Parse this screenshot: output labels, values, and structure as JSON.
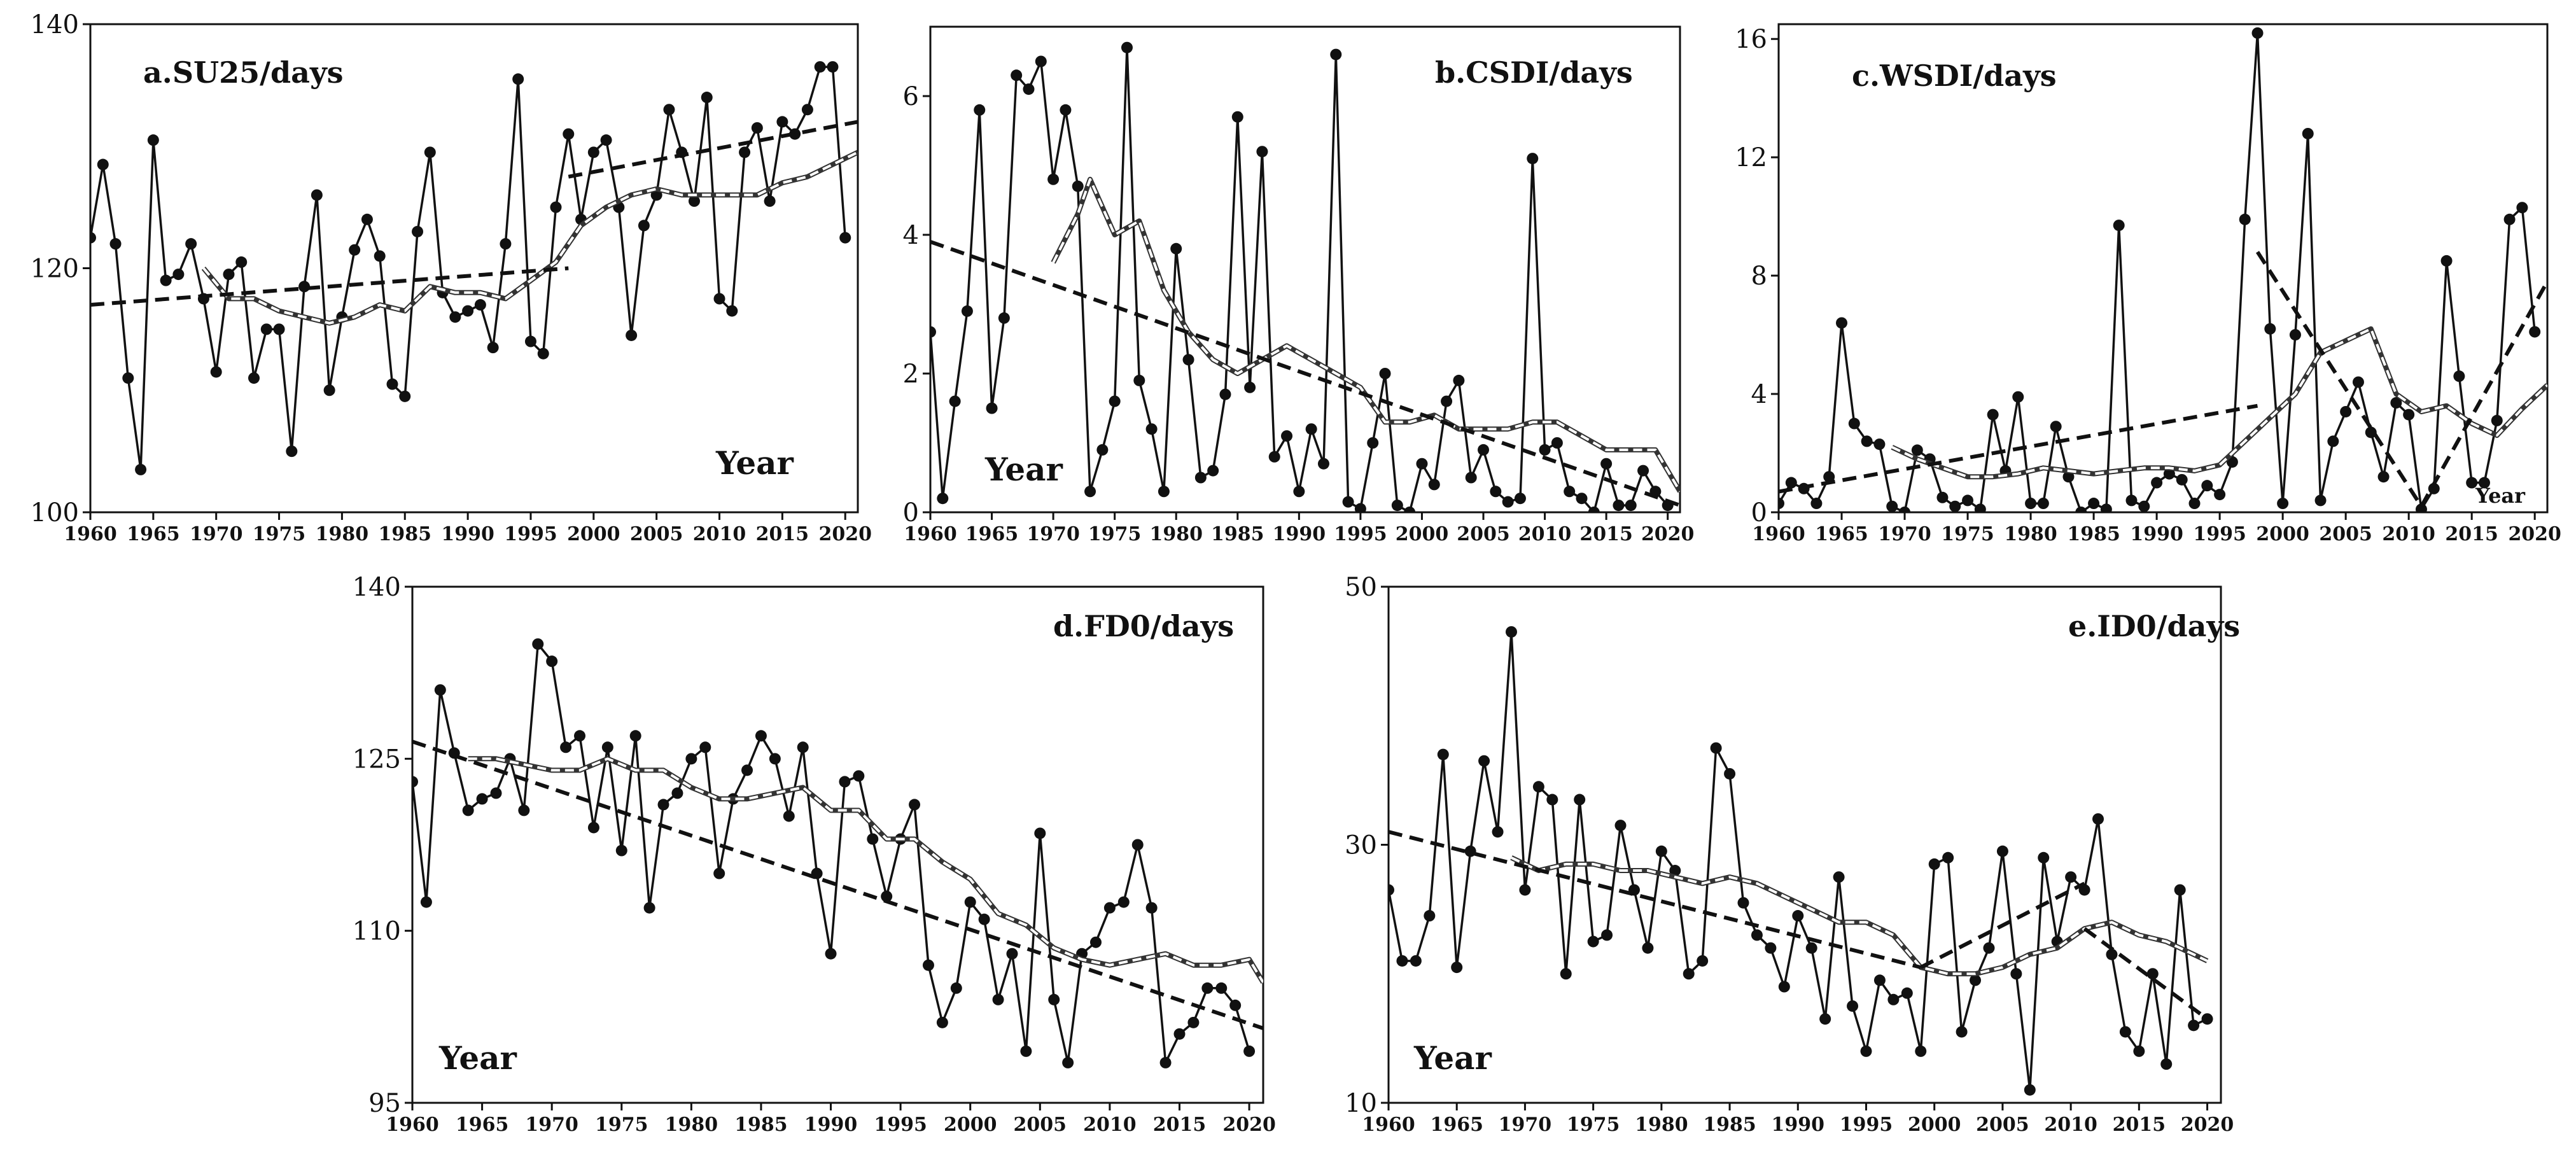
{
  "chart_data": [
    {
      "type": "line",
      "title": "a.SU25/days",
      "xlabel": "Year",
      "x_ticks": [
        1960,
        1965,
        1970,
        1975,
        1980,
        1985,
        1990,
        1995,
        2000,
        2005,
        2010,
        2015,
        2020
      ],
      "y_ticks": [
        100,
        120,
        140
      ],
      "xlim": [
        1960,
        2021
      ],
      "ylim": [
        100,
        140
      ],
      "series": [
        {
          "style": "solid-markers",
          "x_start": 1960,
          "values": [
            122.5,
            128.5,
            122,
            111,
            103.5,
            130.5,
            119,
            119.5,
            122,
            117.5,
            111.5,
            119.5,
            120.5,
            111,
            115,
            115,
            105,
            118.5,
            126,
            110,
            116,
            121.5,
            124,
            121,
            110.5,
            109.5,
            123,
            129.5,
            118,
            116,
            116.5,
            117,
            113.5,
            122,
            135.5,
            114,
            113,
            125,
            131,
            124,
            129.5,
            130.5,
            125,
            114.5,
            123.5,
            126,
            133,
            129.5,
            125.5,
            134,
            117.5,
            116.5,
            129.5,
            131.5,
            125.5,
            132,
            131,
            133,
            136.5,
            136.5,
            122.5
          ]
        },
        {
          "style": "moving-average",
          "x": [
            1969,
            1971,
            1973,
            1975,
            1977,
            1979,
            1981,
            1983,
            1985,
            1987,
            1989,
            1991,
            1993,
            1995,
            1997,
            1999,
            2001,
            2003,
            2005,
            2007,
            2009,
            2011,
            2013,
            2015,
            2017,
            2019,
            2021
          ],
          "values": [
            120,
            117.5,
            117.5,
            116.5,
            116,
            115.5,
            116,
            117,
            116.5,
            118.5,
            118,
            118,
            117.5,
            119,
            120.5,
            123.5,
            125,
            126,
            126.5,
            126,
            126,
            126,
            126,
            127,
            127.5,
            128.5,
            129.5
          ]
        },
        {
          "style": "trend",
          "x": [
            1960,
            1998
          ],
          "values": [
            117,
            120
          ]
        },
        {
          "style": "trend",
          "x": [
            1998,
            2021
          ],
          "values": [
            127.5,
            132
          ]
        }
      ]
    },
    {
      "type": "line",
      "title": "b.CSDI/days",
      "xlabel": "Year",
      "x_ticks": [
        1960,
        1965,
        1970,
        1975,
        1980,
        1985,
        1990,
        1995,
        2000,
        2005,
        2010,
        2015,
        2020
      ],
      "y_ticks": [
        0,
        2,
        4,
        6
      ],
      "xlim": [
        1960,
        2021
      ],
      "ylim": [
        0,
        7
      ],
      "series": [
        {
          "style": "solid-markers",
          "x_start": 1960,
          "values": [
            2.6,
            0.2,
            1.6,
            2.9,
            5.8,
            1.5,
            2.8,
            6.3,
            6.1,
            6.5,
            4.8,
            5.8,
            4.7,
            0.3,
            0.9,
            1.6,
            6.7,
            1.9,
            1.2,
            0.3,
            3.8,
            2.2,
            0.5,
            0.6,
            1.7,
            5.7,
            1.8,
            5.2,
            0.8,
            1.1,
            0.3,
            1.2,
            0.7,
            6.6,
            0.15,
            0.05,
            1.0,
            2.0,
            0.1,
            0.0,
            0.7,
            0.4,
            1.6,
            1.9,
            0.5,
            0.9,
            0.3,
            0.15,
            0.2,
            5.1,
            0.9,
            1.0,
            0.3,
            0.2,
            0.0,
            0.7,
            0.1,
            0.1,
            0.6,
            0.3,
            0.1
          ]
        },
        {
          "style": "moving-average",
          "x": [
            1970,
            1972,
            1973,
            1975,
            1977,
            1979,
            1981,
            1983,
            1985,
            1987,
            1989,
            1991,
            1993,
            1995,
            1997,
            1999,
            2001,
            2003,
            2005,
            2007,
            2009,
            2011,
            2013,
            2015,
            2017,
            2019,
            2021
          ],
          "values": [
            3.6,
            4.3,
            4.8,
            4.0,
            4.2,
            3.2,
            2.6,
            2.2,
            2.0,
            2.2,
            2.4,
            2.2,
            2.0,
            1.8,
            1.3,
            1.3,
            1.4,
            1.2,
            1.2,
            1.2,
            1.3,
            1.3,
            1.1,
            0.9,
            0.9,
            0.9,
            0.3
          ]
        },
        {
          "style": "trend",
          "x": [
            1960,
            2021
          ],
          "values": [
            3.9,
            0.1
          ]
        }
      ]
    },
    {
      "type": "line",
      "title": "c.WSDI/days",
      "xlabel": "Year",
      "x_ticks": [
        1960,
        1965,
        1970,
        1975,
        1980,
        1985,
        1990,
        1995,
        2000,
        2005,
        2010,
        2015,
        2020
      ],
      "y_ticks": [
        0,
        4,
        8,
        12,
        16
      ],
      "xlim": [
        1960,
        2021
      ],
      "ylim": [
        0,
        16.5
      ],
      "series": [
        {
          "style": "solid-markers",
          "x_start": 1960,
          "values": [
            0.3,
            1.0,
            0.8,
            0.3,
            1.2,
            6.4,
            3.0,
            2.4,
            2.3,
            0.2,
            0.0,
            2.1,
            1.8,
            0.5,
            0.2,
            0.4,
            0.1,
            3.3,
            1.4,
            3.9,
            0.3,
            0.3,
            2.9,
            1.2,
            0.0,
            0.3,
            0.1,
            9.7,
            0.4,
            0.2,
            1.0,
            1.3,
            1.1,
            0.3,
            0.9,
            0.6,
            1.7,
            9.9,
            16.2,
            6.2,
            0.3,
            6.0,
            12.8,
            0.4,
            2.4,
            3.4,
            4.4,
            2.7,
            1.2,
            3.7,
            3.3,
            0.1,
            0.8,
            8.5,
            4.6,
            1.0,
            1.0,
            3.1,
            9.9,
            10.3,
            6.1
          ]
        },
        {
          "style": "moving-average",
          "x": [
            1969,
            1971,
            1973,
            1975,
            1977,
            1979,
            1981,
            1983,
            1985,
            1987,
            1989,
            1991,
            1993,
            1995,
            1997,
            1999,
            2001,
            2003,
            2005,
            2007,
            2009,
            2011,
            2013,
            2015,
            2017,
            2019,
            2021
          ],
          "values": [
            2.2,
            1.8,
            1.5,
            1.2,
            1.2,
            1.3,
            1.5,
            1.4,
            1.3,
            1.4,
            1.5,
            1.5,
            1.4,
            1.6,
            2.4,
            3.2,
            4.0,
            5.4,
            5.8,
            6.2,
            4.0,
            3.4,
            3.6,
            3.0,
            2.6,
            3.5,
            4.3
          ]
        },
        {
          "style": "trend",
          "x": [
            1960,
            1998
          ],
          "values": [
            0.7,
            3.6
          ]
        },
        {
          "style": "trend",
          "x": [
            1998,
            2011
          ],
          "values": [
            8.8,
            0.2
          ]
        },
        {
          "style": "trend",
          "x": [
            2011,
            2021
          ],
          "values": [
            0.2,
            7.8
          ]
        }
      ]
    },
    {
      "type": "line",
      "title": "d.FD0/days",
      "xlabel": "Year",
      "x_ticks": [
        1960,
        1965,
        1970,
        1975,
        1980,
        1985,
        1990,
        1995,
        2000,
        2005,
        2010,
        2015,
        2020
      ],
      "y_ticks": [
        95,
        110,
        125,
        140
      ],
      "xlim": [
        1960,
        2021
      ],
      "ylim": [
        95,
        140
      ],
      "series": [
        {
          "style": "solid-markers",
          "x_start": 1960,
          "values": [
            123,
            112.5,
            131,
            125.5,
            120.5,
            121.5,
            122,
            125,
            120.5,
            135,
            133.5,
            126,
            127,
            119,
            126,
            117,
            127,
            112,
            121,
            122,
            125,
            126,
            115,
            121.5,
            124,
            127,
            125,
            120,
            126,
            115,
            108,
            123,
            123.5,
            118,
            113,
            118,
            121,
            107,
            102,
            105,
            112.5,
            111,
            104,
            108,
            99.5,
            118.5,
            104,
            98.5,
            108,
            109,
            112,
            112.5,
            117.5,
            112,
            98.5,
            101,
            102,
            105,
            105,
            103.5,
            99.5
          ]
        },
        {
          "style": "moving-average",
          "x": [
            1964,
            1966,
            1968,
            1970,
            1972,
            1974,
            1976,
            1978,
            1980,
            1982,
            1984,
            1986,
            1988,
            1990,
            1992,
            1994,
            1996,
            1998,
            2000,
            2002,
            2004,
            2006,
            2008,
            2010,
            2012,
            2014,
            2016,
            2018,
            2020,
            2021
          ],
          "values": [
            125,
            125,
            124.5,
            124,
            124,
            125,
            124,
            124,
            122.5,
            121.5,
            121.5,
            122,
            122.5,
            120.5,
            120.5,
            118,
            118,
            116,
            114.5,
            111.5,
            110.5,
            108.5,
            107.5,
            107,
            107.5,
            108,
            107,
            107,
            107.5,
            105.5
          ]
        },
        {
          "style": "trend",
          "x": [
            1960,
            2021
          ],
          "values": [
            126.5,
            101.5
          ]
        }
      ]
    },
    {
      "type": "line",
      "title": "e.ID0/days",
      "xlabel": "Year",
      "x_ticks": [
        1960,
        1965,
        1970,
        1975,
        1980,
        1985,
        1990,
        1995,
        2000,
        2005,
        2010,
        2015,
        2020
      ],
      "y_ticks": [
        10,
        30,
        50
      ],
      "xlim": [
        1960,
        2021
      ],
      "ylim": [
        10,
        50
      ],
      "series": [
        {
          "style": "solid-markers",
          "x_start": 1960,
          "values": [
            26.5,
            21,
            21,
            24.5,
            37,
            20.5,
            29.5,
            36.5,
            31,
            46.5,
            26.5,
            34.5,
            33.5,
            20,
            33.5,
            22.5,
            23,
            31.5,
            26.5,
            22,
            29.5,
            28,
            20,
            21,
            37.5,
            35.5,
            25.5,
            23,
            22,
            19,
            24.5,
            22,
            16.5,
            27.5,
            17.5,
            14,
            19.5,
            18,
            18.5,
            14,
            28.5,
            29,
            15.5,
            19.5,
            22,
            29.5,
            20,
            11,
            29,
            22.5,
            27.5,
            26.5,
            32,
            21.5,
            15.5,
            14,
            20,
            13,
            26.5,
            16,
            16.5
          ]
        },
        {
          "style": "moving-average",
          "x": [
            1969,
            1971,
            1973,
            1975,
            1977,
            1979,
            1981,
            1983,
            1985,
            1987,
            1989,
            1991,
            1993,
            1995,
            1997,
            1999,
            2001,
            2003,
            2005,
            2007,
            2009,
            2011,
            2013,
            2015,
            2017,
            2019,
            2020
          ],
          "values": [
            29,
            28,
            28.5,
            28.5,
            28,
            28,
            27.5,
            27,
            27.5,
            27,
            26,
            25,
            24,
            24,
            23,
            20.5,
            20,
            20,
            20.5,
            21.5,
            22,
            23.5,
            24,
            23,
            22.5,
            21.5,
            21
          ]
        },
        {
          "style": "trend",
          "x": [
            1960,
            1999
          ],
          "values": [
            31,
            20.5
          ]
        },
        {
          "style": "trend",
          "x": [
            1999,
            2011
          ],
          "values": [
            20.5,
            27
          ]
        },
        {
          "style": "trend",
          "x": [
            2011,
            2020
          ],
          "values": [
            23.5,
            16.5
          ]
        }
      ]
    }
  ]
}
